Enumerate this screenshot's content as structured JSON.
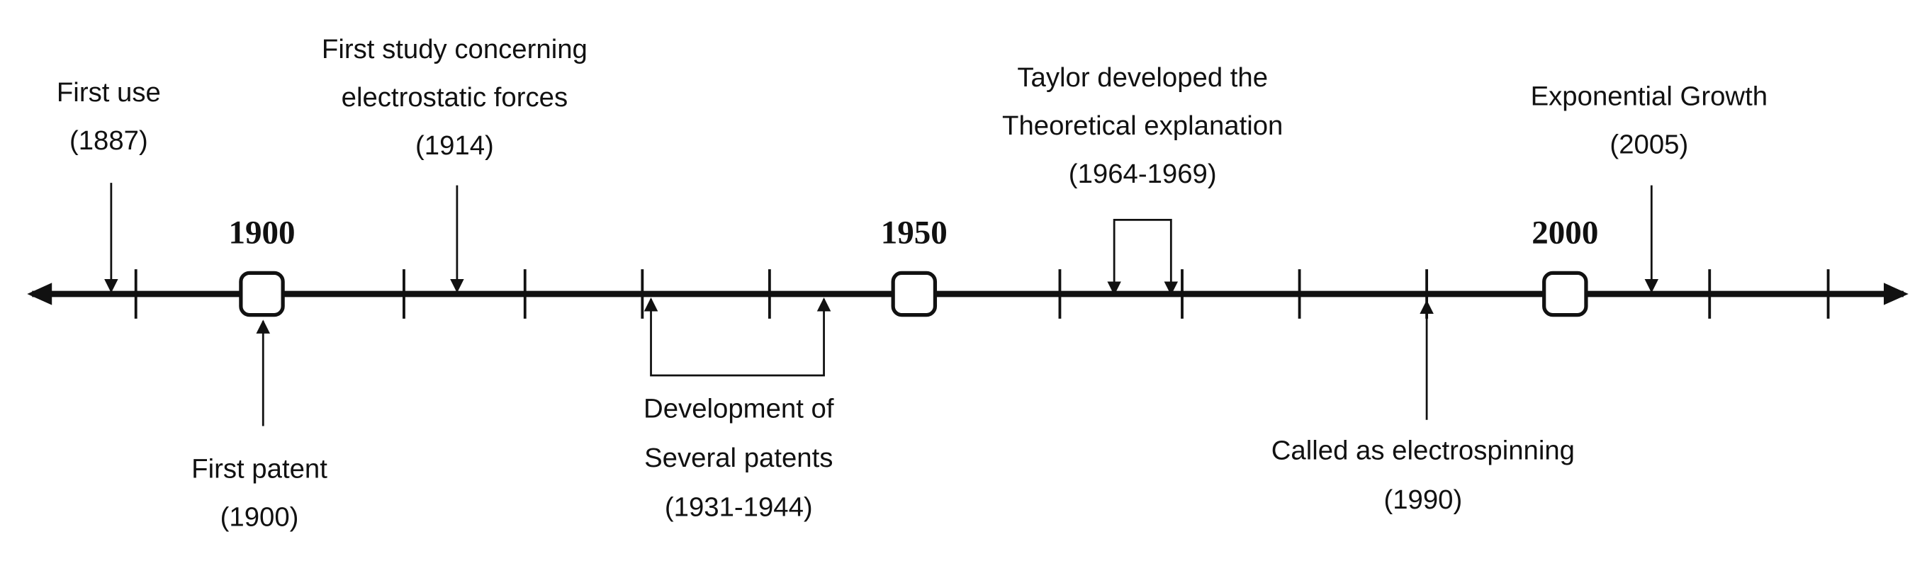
{
  "milestones": [
    "1900",
    "1950",
    "2000"
  ],
  "events": [
    {
      "lines": [
        "First use",
        "(1887)"
      ]
    },
    {
      "lines": [
        "First study concerning",
        "electrostatic forces",
        "(1914)"
      ]
    },
    {
      "lines": [
        "Taylor developed the",
        "Theoretical explanation",
        "(1964-1969)"
      ]
    },
    {
      "lines": [
        "Exponential Growth",
        "(2005)"
      ]
    },
    {
      "lines": [
        "First patent",
        "(1900)"
      ]
    },
    {
      "lines": [
        "Development of",
        "Several patents",
        "(1931-1944)"
      ]
    },
    {
      "lines": [
        "Called as electrospinning",
        "(1990)"
      ]
    }
  ]
}
